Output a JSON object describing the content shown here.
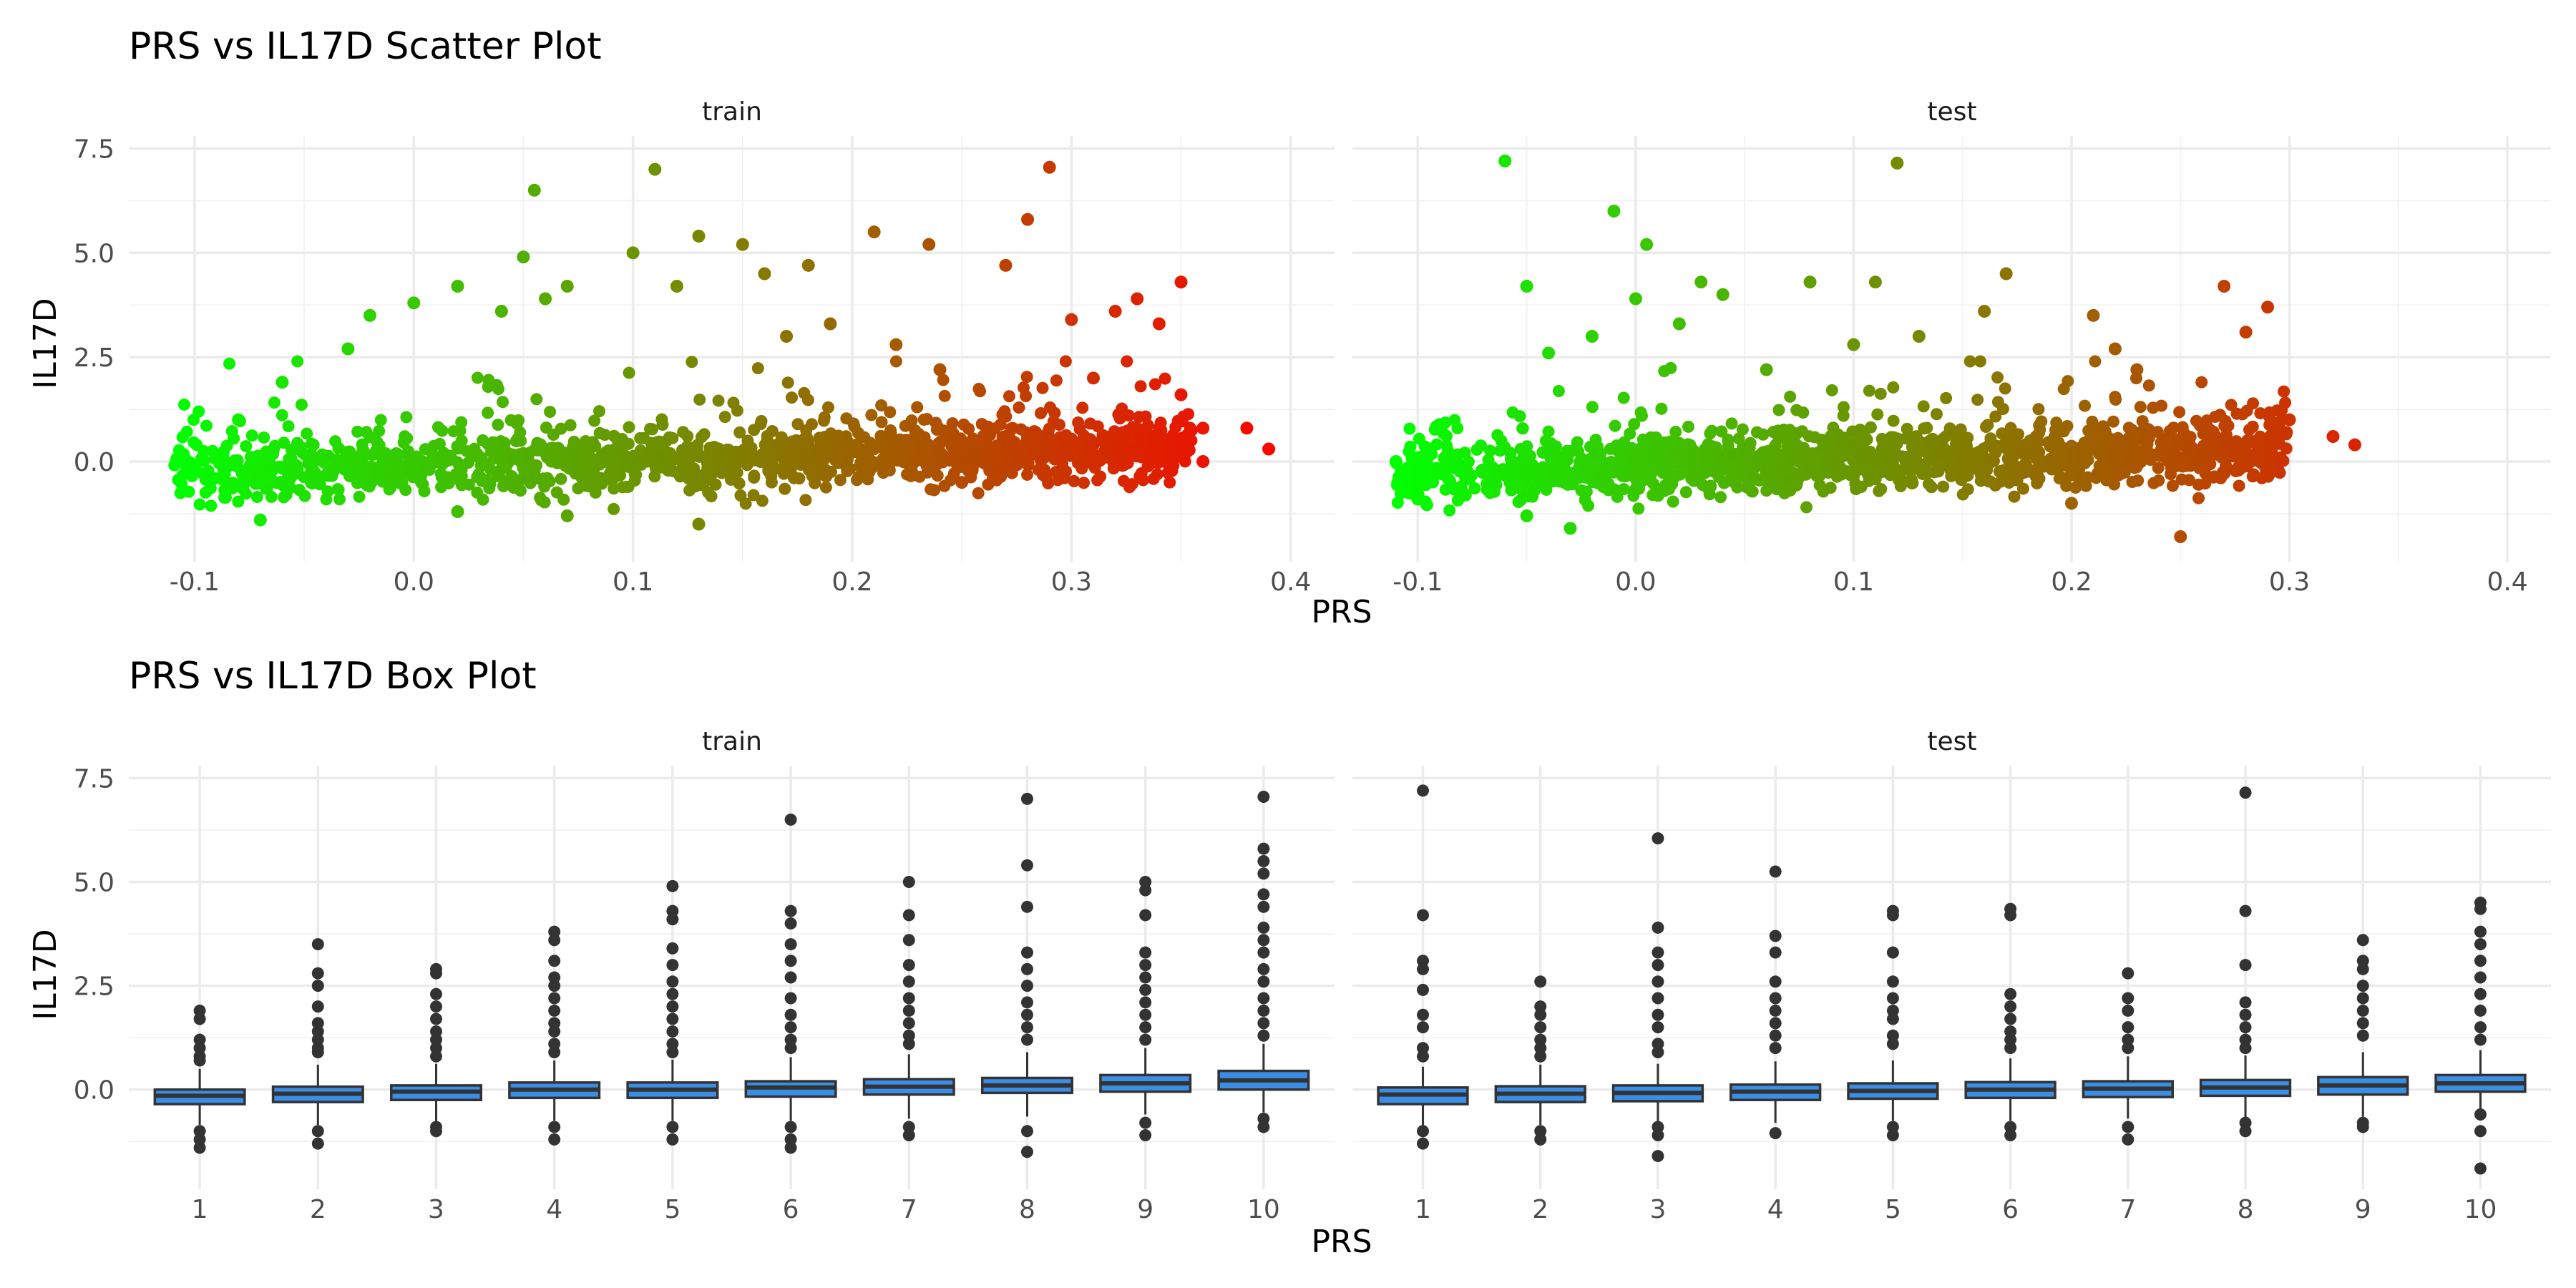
{
  "chart_data": [
    {
      "type": "scatter",
      "title": "PRS vs IL17D Scatter Plot",
      "xlabel": "PRS",
      "ylabel": "IL17D",
      "xlim": [
        -0.13,
        0.42
      ],
      "ylim": [
        -2.4,
        7.8
      ],
      "x_ticks": [
        -0.1,
        0.0,
        0.1,
        0.2,
        0.3,
        0.4
      ],
      "x_tick_labels": [
        "-0.1",
        "0.0",
        "0.1",
        "0.2",
        "0.3",
        "0.4"
      ],
      "y_ticks": [
        0.0,
        2.5,
        5.0,
        7.5
      ],
      "y_tick_labels": [
        "0.0",
        "2.5",
        "5.0",
        "7.5"
      ],
      "grid": true,
      "color_gradient": [
        "#00ff00",
        "#ff0000"
      ],
      "color_range": [
        -0.11,
        0.4
      ],
      "facets": [
        {
          "name": "train",
          "x_range": [
            -0.11,
            0.39
          ],
          "core_y_center_at_min": -0.3,
          "core_y_center_at_max": 0.35,
          "core_y_spread": 0.35,
          "points": [
            [
              -0.1,
              -0.1
            ],
            [
              -0.08,
              1.0
            ],
            [
              -0.06,
              1.9
            ],
            [
              -0.03,
              2.7
            ],
            [
              -0.02,
              3.5
            ],
            [
              0.0,
              3.8
            ],
            [
              0.02,
              4.2
            ],
            [
              0.04,
              3.6
            ],
            [
              0.05,
              4.9
            ],
            [
              0.055,
              6.5
            ],
            [
              0.06,
              3.9
            ],
            [
              0.07,
              4.2
            ],
            [
              0.1,
              5.0
            ],
            [
              0.11,
              7.0
            ],
            [
              0.12,
              4.2
            ],
            [
              0.13,
              5.4
            ],
            [
              0.15,
              5.2
            ],
            [
              0.16,
              4.5
            ],
            [
              0.18,
              4.7
            ],
            [
              0.19,
              3.3
            ],
            [
              0.21,
              5.5
            ],
            [
              0.235,
              5.2
            ],
            [
              0.27,
              4.7
            ],
            [
              0.28,
              5.8
            ],
            [
              0.29,
              7.05
            ],
            [
              0.3,
              3.4
            ],
            [
              0.32,
              3.6
            ],
            [
              0.33,
              3.9
            ],
            [
              0.34,
              3.3
            ],
            [
              0.35,
              1.6
            ],
            [
              0.35,
              4.3
            ],
            [
              0.36,
              0.8
            ],
            [
              0.38,
              0.8
            ],
            [
              0.39,
              0.3
            ],
            [
              0.36,
              0.0
            ],
            [
              0.07,
              -1.3
            ],
            [
              0.13,
              -1.5
            ],
            [
              -0.07,
              -1.4
            ],
            [
              0.02,
              -1.2
            ],
            [
              0.25,
              -0.5
            ],
            [
              0.31,
              2.0
            ],
            [
              0.24,
              2.2
            ],
            [
              0.22,
              2.8
            ],
            [
              0.17,
              3.0
            ]
          ]
        },
        {
          "name": "test",
          "x_range": [
            -0.11,
            0.33
          ],
          "core_y_center_at_min": -0.3,
          "core_y_center_at_max": 0.3,
          "core_y_spread": 0.35,
          "points": [
            [
              -0.11,
              0.0
            ],
            [
              -0.1,
              -0.5
            ],
            [
              -0.1,
              -0.9
            ],
            [
              -0.06,
              7.2
            ],
            [
              -0.05,
              4.2
            ],
            [
              -0.04,
              2.6
            ],
            [
              -0.02,
              3.0
            ],
            [
              -0.01,
              6.0
            ],
            [
              0.0,
              3.9
            ],
            [
              0.005,
              5.2
            ],
            [
              0.02,
              3.3
            ],
            [
              0.03,
              4.3
            ],
            [
              0.04,
              4.0
            ],
            [
              0.08,
              4.3
            ],
            [
              0.11,
              4.3
            ],
            [
              0.12,
              7.15
            ],
            [
              0.13,
              3.0
            ],
            [
              0.16,
              3.6
            ],
            [
              0.17,
              4.5
            ],
            [
              0.21,
              3.5
            ],
            [
              0.22,
              2.7
            ],
            [
              0.23,
              2.2
            ],
            [
              0.27,
              4.2
            ],
            [
              0.28,
              3.1
            ],
            [
              0.29,
              3.7
            ],
            [
              0.25,
              -1.8
            ],
            [
              -0.03,
              -1.6
            ],
            [
              0.2,
              -1.0
            ],
            [
              0.33,
              0.4
            ],
            [
              0.32,
              0.6
            ],
            [
              0.3,
              1.0
            ],
            [
              -0.05,
              -1.3
            ],
            [
              0.06,
              2.2
            ],
            [
              0.1,
              2.8
            ]
          ]
        }
      ]
    },
    {
      "type": "box",
      "title": "PRS vs IL17D Box Plot",
      "xlabel": "PRS",
      "ylabel": "IL17D",
      "categories": [
        "1",
        "2",
        "3",
        "4",
        "5",
        "6",
        "7",
        "8",
        "9",
        "10"
      ],
      "ylim": [
        -2.4,
        7.8
      ],
      "y_ticks": [
        0.0,
        2.5,
        5.0,
        7.5
      ],
      "y_tick_labels": [
        "0.0",
        "2.5",
        "5.0",
        "7.5"
      ],
      "grid": true,
      "box_fill": "#3a8ee6",
      "outline_color": "#333333",
      "facets": [
        {
          "name": "train",
          "boxes": [
            {
              "q1": -0.35,
              "median": -0.15,
              "q3": 0.0,
              "whisker_low": -0.85,
              "whisker_high": 0.5,
              "outliers": [
                1.9,
                1.7,
                1.2,
                1.0,
                0.8,
                0.7,
                -1.0,
                -1.2,
                -1.4
              ]
            },
            {
              "q1": -0.3,
              "median": -0.1,
              "q3": 0.07,
              "whisker_low": -0.85,
              "whisker_high": 0.6,
              "outliers": [
                3.5,
                2.8,
                2.5,
                2.0,
                1.6,
                1.4,
                1.2,
                1.0,
                0.9,
                -1.0,
                -1.3
              ]
            },
            {
              "q1": -0.25,
              "median": -0.05,
              "q3": 0.1,
              "whisker_low": -0.8,
              "whisker_high": 0.62,
              "outliers": [
                2.9,
                2.8,
                2.3,
                2.0,
                1.7,
                1.4,
                1.2,
                1.0,
                0.8,
                -0.9,
                -1.0
              ]
            },
            {
              "q1": -0.2,
              "median": 0.0,
              "q3": 0.17,
              "whisker_low": -0.75,
              "whisker_high": 0.7,
              "outliers": [
                3.8,
                3.6,
                3.1,
                2.7,
                2.5,
                2.2,
                1.9,
                1.6,
                1.4,
                1.1,
                0.9,
                -0.9,
                -1.2
              ]
            },
            {
              "q1": -0.2,
              "median": 0.0,
              "q3": 0.17,
              "whisker_low": -0.75,
              "whisker_high": 0.72,
              "outliers": [
                4.9,
                4.3,
                4.1,
                3.4,
                3.0,
                2.6,
                2.3,
                2.0,
                1.7,
                1.4,
                1.1,
                0.9,
                -0.9,
                -1.2
              ]
            },
            {
              "q1": -0.17,
              "median": 0.05,
              "q3": 0.2,
              "whisker_low": -0.75,
              "whisker_high": 0.78,
              "outliers": [
                6.5,
                4.3,
                4.0,
                3.5,
                3.1,
                2.7,
                2.2,
                1.8,
                1.5,
                1.2,
                1.0,
                -0.9,
                -1.2,
                -1.4
              ]
            },
            {
              "q1": -0.12,
              "median": 0.07,
              "q3": 0.25,
              "whisker_low": -0.7,
              "whisker_high": 0.85,
              "outliers": [
                5.0,
                4.2,
                3.6,
                3.0,
                2.6,
                2.2,
                1.9,
                1.6,
                1.3,
                1.1,
                -0.9,
                -1.1
              ]
            },
            {
              "q1": -0.08,
              "median": 0.1,
              "q3": 0.28,
              "whisker_low": -0.65,
              "whisker_high": 0.9,
              "outliers": [
                7.0,
                5.4,
                4.4,
                3.3,
                2.9,
                2.5,
                2.1,
                1.8,
                1.5,
                1.2,
                -1.0,
                -1.5
              ]
            },
            {
              "q1": -0.05,
              "median": 0.15,
              "q3": 0.35,
              "whisker_low": -0.6,
              "whisker_high": 1.0,
              "outliers": [
                5.0,
                4.8,
                4.2,
                3.3,
                3.0,
                2.7,
                2.4,
                2.1,
                1.8,
                1.5,
                1.2,
                -0.8,
                -1.1
              ]
            },
            {
              "q1": 0.0,
              "median": 0.22,
              "q3": 0.45,
              "whisker_low": -0.55,
              "whisker_high": 1.1,
              "outliers": [
                7.05,
                5.8,
                5.5,
                5.2,
                4.7,
                4.4,
                3.9,
                3.6,
                3.3,
                2.9,
                2.6,
                2.2,
                1.9,
                1.6,
                1.3,
                -0.7,
                -0.9
              ]
            }
          ]
        },
        {
          "name": "test",
          "boxes": [
            {
              "q1": -0.35,
              "median": -0.12,
              "q3": 0.05,
              "whisker_low": -0.9,
              "whisker_high": 0.55,
              "outliers": [
                7.2,
                4.2,
                3.1,
                2.9,
                2.4,
                1.8,
                1.5,
                1.0,
                0.8,
                -1.0,
                -1.3
              ]
            },
            {
              "q1": -0.3,
              "median": -0.1,
              "q3": 0.08,
              "whisker_low": -0.85,
              "whisker_high": 0.6,
              "outliers": [
                2.6,
                2.0,
                1.8,
                1.5,
                1.2,
                1.0,
                0.8,
                -1.0,
                -1.2
              ]
            },
            {
              "q1": -0.28,
              "median": -0.08,
              "q3": 0.1,
              "whisker_low": -0.85,
              "whisker_high": 0.62,
              "outliers": [
                6.05,
                3.9,
                3.3,
                3.0,
                2.6,
                2.2,
                1.8,
                1.5,
                1.1,
                0.9,
                -0.9,
                -1.1,
                -1.6
              ]
            },
            {
              "q1": -0.25,
              "median": -0.05,
              "q3": 0.12,
              "whisker_low": -0.8,
              "whisker_high": 0.68,
              "outliers": [
                5.25,
                3.7,
                3.3,
                2.6,
                2.2,
                1.9,
                1.6,
                1.3,
                1.0,
                -1.05
              ]
            },
            {
              "q1": -0.22,
              "median": -0.03,
              "q3": 0.15,
              "whisker_low": -0.75,
              "whisker_high": 0.7,
              "outliers": [
                4.3,
                4.2,
                3.3,
                2.6,
                2.2,
                1.9,
                1.7,
                1.3,
                1.1,
                -0.9,
                -1.1
              ]
            },
            {
              "q1": -0.2,
              "median": 0.0,
              "q3": 0.18,
              "whisker_low": -0.75,
              "whisker_high": 0.75,
              "outliers": [
                4.35,
                4.2,
                2.3,
                2.0,
                1.7,
                1.4,
                1.2,
                1.0,
                -0.9,
                -1.1
              ]
            },
            {
              "q1": -0.18,
              "median": 0.02,
              "q3": 0.2,
              "whisker_low": -0.7,
              "whisker_high": 0.8,
              "outliers": [
                2.8,
                2.2,
                1.9,
                1.5,
                1.2,
                1.0,
                -0.9,
                -1.2
              ]
            },
            {
              "q1": -0.15,
              "median": 0.05,
              "q3": 0.23,
              "whisker_low": -0.7,
              "whisker_high": 0.82,
              "outliers": [
                7.15,
                4.3,
                3.0,
                2.1,
                1.8,
                1.5,
                1.2,
                1.0,
                -0.8,
                -1.0
              ]
            },
            {
              "q1": -0.12,
              "median": 0.1,
              "q3": 0.3,
              "whisker_low": -0.65,
              "whisker_high": 0.9,
              "outliers": [
                3.6,
                3.1,
                2.9,
                2.5,
                2.2,
                1.9,
                1.6,
                1.3,
                -0.8,
                -0.9
              ]
            },
            {
              "q1": -0.05,
              "median": 0.15,
              "q3": 0.35,
              "whisker_low": -0.6,
              "whisker_high": 0.95,
              "outliers": [
                4.5,
                4.35,
                3.8,
                3.5,
                3.1,
                2.7,
                2.3,
                1.9,
                1.5,
                1.2,
                -0.6,
                -1.0,
                -1.9
              ]
            }
          ]
        }
      ]
    }
  ]
}
